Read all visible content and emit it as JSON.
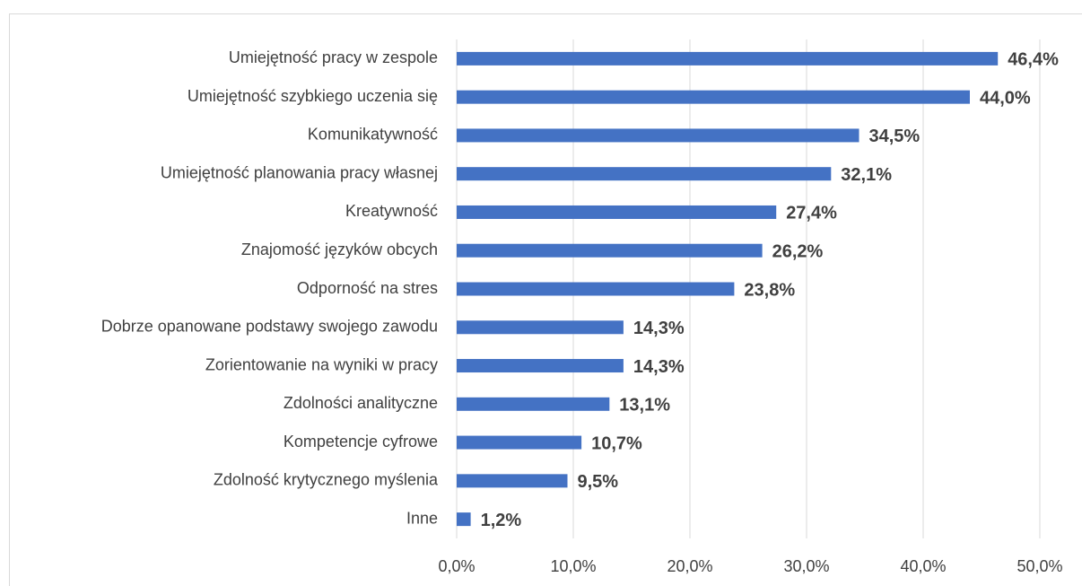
{
  "chart_data": {
    "type": "bar",
    "orientation": "horizontal",
    "color": "#4472c4",
    "grid": true,
    "categories": [
      "Umiejętność pracy w zespole",
      "Umiejętność szybkiego uczenia się",
      "Komunikatywność",
      "Umiejętność planowania pracy własnej",
      "Kreatywność",
      "Znajomość języków obcych",
      "Odporność na stres",
      "Dobrze opanowane podstawy swojego zawodu",
      "Zorientowanie na wyniki w pracy",
      "Zdolności analityczne",
      "Kompetencje cyfrowe",
      "Zdolność krytycznego myślenia",
      "Inne"
    ],
    "values": [
      46.4,
      44.0,
      34.5,
      32.1,
      27.4,
      26.2,
      23.8,
      14.3,
      14.3,
      13.1,
      10.7,
      9.5,
      1.2
    ],
    "value_labels": [
      "46,4%",
      "44,0%",
      "34,5%",
      "32,1%",
      "27,4%",
      "26,2%",
      "23,8%",
      "14,3%",
      "14,3%",
      "13,1%",
      "10,7%",
      "9,5%",
      "1,2%"
    ],
    "xlim": [
      0,
      50
    ],
    "xticks": [
      {
        "value": 0,
        "label": "0,0%"
      },
      {
        "value": 10,
        "label": "10,0%"
      },
      {
        "value": 20,
        "label": "20,0%"
      },
      {
        "value": 30,
        "label": "30,0%"
      },
      {
        "value": 40,
        "label": "40,0%"
      },
      {
        "value": 50,
        "label": "50,0%"
      }
    ]
  }
}
